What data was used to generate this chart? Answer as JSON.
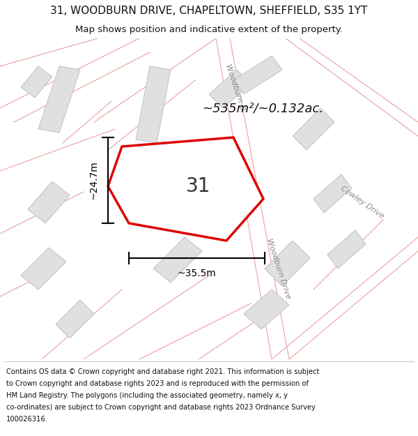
{
  "title_line1": "31, WOODBURN DRIVE, CHAPELTOWN, SHEFFIELD, S35 1YT",
  "title_line2": "Map shows position and indicative extent of the property.",
  "area_text": "~535m²/~0.132ac.",
  "number_label": "31",
  "dim_width": "~35.5m",
  "dim_height": "~24.7m",
  "footer_lines": [
    "Contains OS data © Crown copyright and database right 2021. This information is subject",
    "to Crown copyright and database rights 2023 and is reproduced with the permission of",
    "HM Land Registry. The polygons (including the associated geometry, namely x, y",
    "co-ordinates) are subject to Crown copyright and database rights 2023 Ordnance Survey",
    "100026316."
  ],
  "bg_color": "#ffffff",
  "map_bg": "#ffffff",
  "road_line_color": "#e8a0a0",
  "road_line_lw": 0.8,
  "plot_outline": "#dd0000",
  "plot_fill": "#ffffff",
  "building_fill": "#e0e0e0",
  "building_edge": "#c0c0c0",
  "parcel_line_color": "#e8a0a0",
  "street_label_color": "#888888",
  "dim_color": "#000000",
  "number_fontsize": 20,
  "area_fontsize": 13,
  "dim_fontsize": 10,
  "street_fontsize": 8,
  "title_fontsize": 11,
  "subtitle_fontsize": 9.5,
  "footer_fontsize": 7.2
}
